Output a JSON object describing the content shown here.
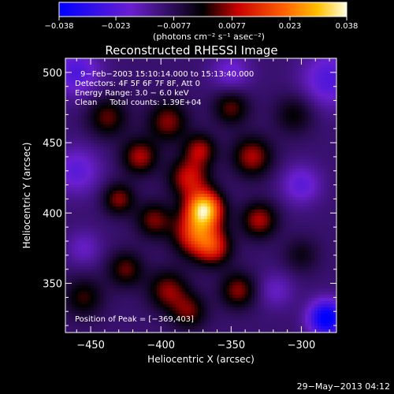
{
  "chart_data": {
    "type": "heatmap",
    "title": "Reconstructed RHESSI Image",
    "xlabel": "Heliocentric X (arcsec)",
    "ylabel": "Heliocentric Y (arcsec)",
    "xlim": [
      -468,
      -275
    ],
    "ylim": [
      315,
      510
    ],
    "xticks": [
      -450,
      -400,
      -350,
      -300
    ],
    "yticks": [
      350,
      400,
      450,
      500
    ],
    "xtick_labels": [
      "−450",
      "−400",
      "−350",
      "−300"
    ],
    "ytick_labels": [
      "350",
      "400",
      "450",
      "500"
    ],
    "colorbar": {
      "range": [
        -0.038,
        0.038
      ],
      "ticks": [
        -0.038,
        -0.023,
        -0.0077,
        0.0077,
        0.023,
        0.038
      ],
      "tick_labels": [
        "−0.038",
        "−0.023",
        "−0.0077",
        "0.0077",
        "0.023",
        "0.038"
      ],
      "unit_label": "(photons cm⁻² s⁻¹ asec⁻²)"
    },
    "annotations": {
      "time": "9−Feb−2003 15:10:14.000 to 15:13:40.000",
      "detectors": "Detectors: 4F 5F 6F 7F 8F, Att 0",
      "energy": "Energy Range: 3.0 − 6.0 keV",
      "clean": "Clean     Total counts: 1.39E+04",
      "peak": "Position of Peak = [−369,403]"
    },
    "peak": {
      "x": -369,
      "y": 403
    },
    "sources": [
      {
        "x": -369,
        "y": 403,
        "amp": 0.04,
        "sigma": 9
      },
      {
        "x": -375,
        "y": 385,
        "amp": 0.026,
        "sigma": 11
      },
      {
        "x": -362,
        "y": 375,
        "amp": 0.018,
        "sigma": 9
      },
      {
        "x": -380,
        "y": 425,
        "amp": 0.02,
        "sigma": 10
      },
      {
        "x": -372,
        "y": 445,
        "amp": 0.017,
        "sigma": 8
      },
      {
        "x": -395,
        "y": 465,
        "amp": 0.016,
        "sigma": 10
      },
      {
        "x": -415,
        "y": 440,
        "amp": 0.018,
        "sigma": 9
      },
      {
        "x": -430,
        "y": 410,
        "amp": 0.016,
        "sigma": 8
      },
      {
        "x": -438,
        "y": 468,
        "amp": 0.014,
        "sigma": 10
      },
      {
        "x": -405,
        "y": 395,
        "amp": 0.015,
        "sigma": 9
      },
      {
        "x": -395,
        "y": 345,
        "amp": 0.016,
        "sigma": 10
      },
      {
        "x": -380,
        "y": 330,
        "amp": 0.014,
        "sigma": 9
      },
      {
        "x": -345,
        "y": 345,
        "amp": 0.016,
        "sigma": 9
      },
      {
        "x": -330,
        "y": 395,
        "amp": 0.018,
        "sigma": 9
      },
      {
        "x": -335,
        "y": 440,
        "amp": 0.018,
        "sigma": 10
      },
      {
        "x": -350,
        "y": 475,
        "amp": 0.014,
        "sigma": 9
      },
      {
        "x": -305,
        "y": 470,
        "amp": 0.01,
        "sigma": 10
      },
      {
        "x": -300,
        "y": 370,
        "amp": 0.008,
        "sigma": 9
      },
      {
        "x": -455,
        "y": 340,
        "amp": 0.012,
        "sigma": 10
      },
      {
        "x": -425,
        "y": 360,
        "amp": 0.014,
        "sigma": 9
      },
      {
        "x": -460,
        "y": 500,
        "amp": -0.014,
        "sigma": 12
      },
      {
        "x": -460,
        "y": 430,
        "amp": -0.012,
        "sigma": 12
      },
      {
        "x": -280,
        "y": 495,
        "amp": -0.014,
        "sigma": 14
      },
      {
        "x": -282,
        "y": 325,
        "amp": -0.03,
        "sigma": 9
      },
      {
        "x": -300,
        "y": 420,
        "amp": -0.012,
        "sigma": 10
      },
      {
        "x": -350,
        "y": 500,
        "amp": -0.01,
        "sigma": 10
      },
      {
        "x": -455,
        "y": 375,
        "amp": -0.008,
        "sigma": 9
      },
      {
        "x": -318,
        "y": 345,
        "amp": -0.008,
        "sigma": 9
      }
    ]
  },
  "footer": {
    "timestamp": "29−May−2013 04:12"
  },
  "colors": {
    "background": "#000000",
    "foreground": "#ffffff"
  }
}
